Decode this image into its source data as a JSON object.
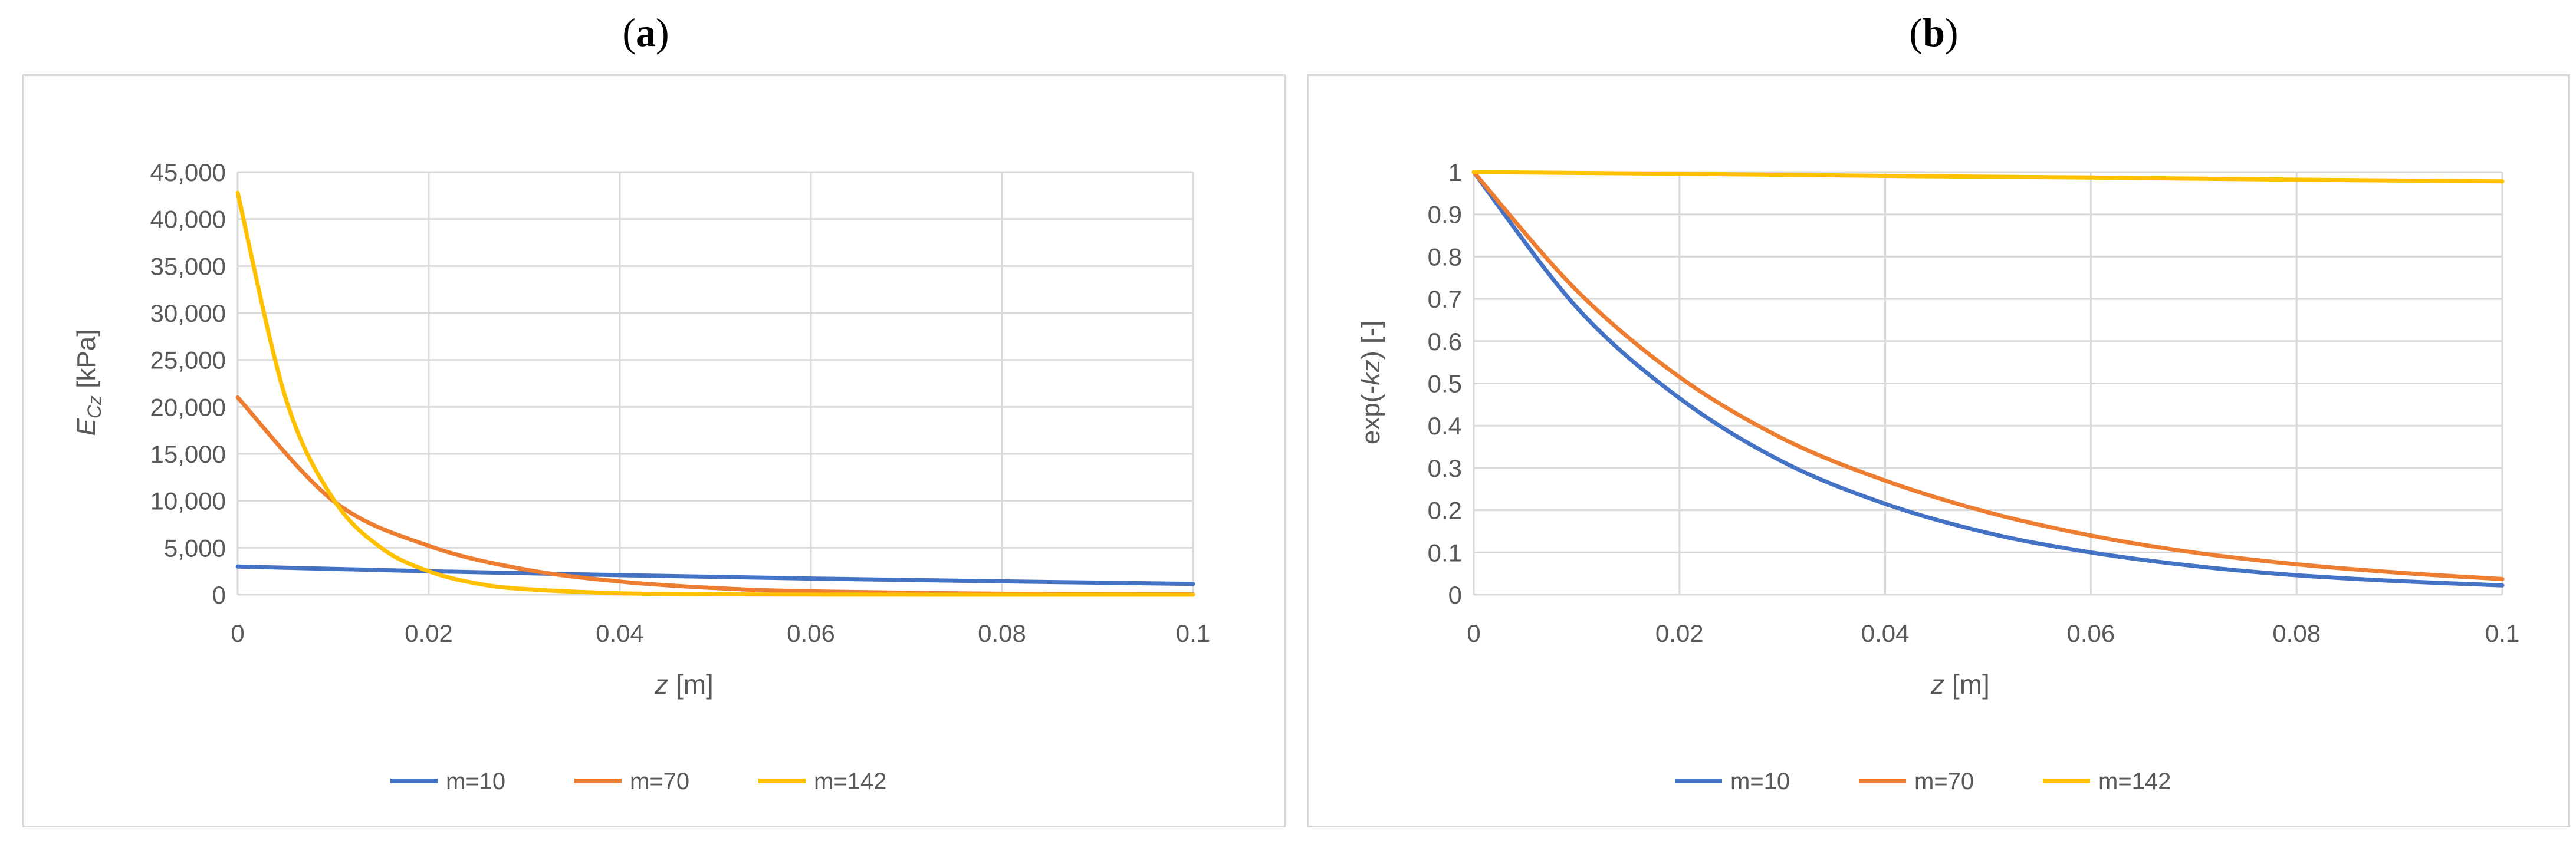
{
  "panels": {
    "a": {
      "label": "a"
    },
    "b": {
      "label": "b"
    }
  },
  "chart_data": [
    {
      "type": "line",
      "panel": "a",
      "title": "",
      "xlabel_var": "z",
      "xlabel_unit": " [m]",
      "ylabel_var": "E",
      "ylabel_sub": "Cz",
      "ylabel_unit": " [kPa]",
      "xlim": [
        0,
        0.1
      ],
      "ylim": [
        0,
        45000
      ],
      "xticks": [
        0,
        0.02,
        0.04,
        0.06,
        0.08,
        0.1
      ],
      "xtick_labels": [
        "0",
        "0.02",
        "0.04",
        "0.06",
        "0.08",
        "0.1"
      ],
      "yticks": [
        0,
        5000,
        10000,
        15000,
        20000,
        25000,
        30000,
        35000,
        40000,
        45000
      ],
      "ytick_labels": [
        "0",
        "5,000",
        "10,000",
        "15,000",
        "20,000",
        "25,000",
        "30,000",
        "35,000",
        "40,000",
        "45,000"
      ],
      "grid": true,
      "legend_position": "bottom",
      "series": [
        {
          "name": "m=10",
          "color": "#4472c4",
          "x": [
            0,
            0.02,
            0.04,
            0.06,
            0.08,
            0.1
          ],
          "y": [
            3000,
            2500,
            2080,
            1720,
            1420,
            1150
          ]
        },
        {
          "name": "m=70",
          "color": "#ed7d31",
          "x": [
            0,
            0.01,
            0.02,
            0.03,
            0.04,
            0.05,
            0.06,
            0.08,
            0.1
          ],
          "y": [
            21000,
            10000,
            5200,
            2700,
            1400,
            700,
            350,
            100,
            30
          ]
        },
        {
          "name": "m=142",
          "color": "#ffc000",
          "x": [
            0,
            0.005,
            0.01,
            0.015,
            0.02,
            0.025,
            0.03,
            0.04,
            0.05,
            0.06,
            0.08,
            0.1
          ],
          "y": [
            42800,
            21000,
            10200,
            5000,
            2500,
            1200,
            600,
            150,
            40,
            10,
            0,
            0
          ]
        }
      ]
    },
    {
      "type": "line",
      "panel": "b",
      "title": "",
      "xlabel_var": "z",
      "xlabel_unit": " [m]",
      "ylabel_pre": "exp(-",
      "ylabel_var": "kz",
      "ylabel_post": ") [-]",
      "xlim": [
        0,
        0.1
      ],
      "ylim": [
        0,
        1
      ],
      "xticks": [
        0,
        0.02,
        0.04,
        0.06,
        0.08,
        0.1
      ],
      "xtick_labels": [
        "0",
        "0.02",
        "0.04",
        "0.06",
        "0.08",
        "0.1"
      ],
      "yticks": [
        0,
        0.1,
        0.2,
        0.3,
        0.4,
        0.5,
        0.6,
        0.7,
        0.8,
        0.9,
        1
      ],
      "ytick_labels": [
        "0",
        "0.1",
        "0.2",
        "0.3",
        "0.4",
        "0.5",
        "0.6",
        "0.7",
        "0.8",
        "0.9",
        "1"
      ],
      "grid": true,
      "legend_position": "bottom",
      "series": [
        {
          "name": "m=10",
          "color": "#4472c4",
          "x": [
            0,
            0.01,
            0.02,
            0.03,
            0.04,
            0.05,
            0.06,
            0.07,
            0.08,
            0.09,
            0.1
          ],
          "y": [
            1,
            0.68,
            0.465,
            0.315,
            0.215,
            0.146,
            0.1,
            0.068,
            0.046,
            0.032,
            0.022
          ]
        },
        {
          "name": "m=70",
          "color": "#ed7d31",
          "x": [
            0,
            0.01,
            0.02,
            0.03,
            0.04,
            0.05,
            0.06,
            0.07,
            0.08,
            0.09,
            0.1
          ],
          "y": [
            1,
            0.72,
            0.515,
            0.37,
            0.27,
            0.195,
            0.14,
            0.1,
            0.072,
            0.052,
            0.037
          ]
        },
        {
          "name": "m=142",
          "color": "#ffc000",
          "x": [
            0,
            0.02,
            0.04,
            0.06,
            0.08,
            0.1
          ],
          "y": [
            1,
            0.996,
            0.991,
            0.987,
            0.982,
            0.978
          ]
        }
      ]
    }
  ]
}
